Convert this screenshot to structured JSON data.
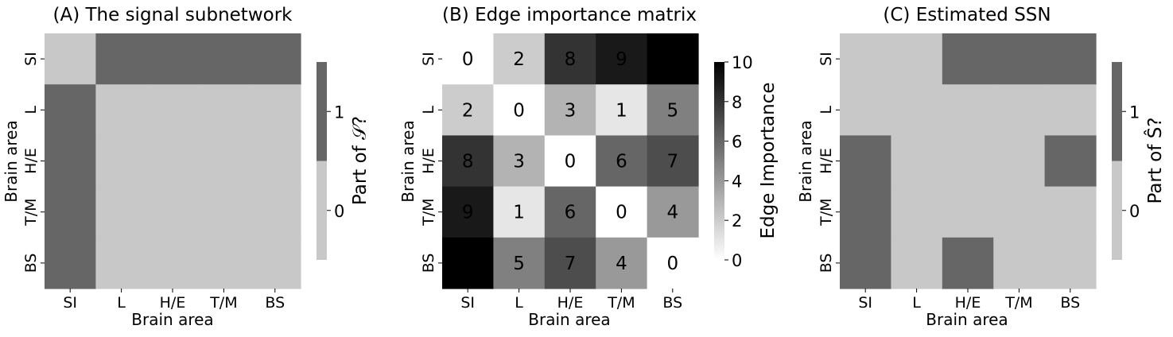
{
  "colors": {
    "dark": "#666666",
    "light": "#c8c8c8"
  },
  "chart_data": [
    {
      "type": "heatmap",
      "title": "(A) The signal subnetwork",
      "xlabel": "Brain area",
      "ylabel": "Brain area",
      "categories": [
        "SI",
        "L",
        "H/E",
        "T/M",
        "BS"
      ],
      "values": [
        [
          0,
          1,
          1,
          1,
          1
        ],
        [
          1,
          0,
          0,
          0,
          0
        ],
        [
          1,
          0,
          0,
          0,
          0
        ],
        [
          1,
          0,
          0,
          0,
          0
        ],
        [
          1,
          0,
          0,
          0,
          0
        ]
      ],
      "colorbar": {
        "label": "Part of 𝒮?",
        "ticks": [
          "0",
          "1"
        ],
        "range": [
          -0.5,
          1.5
        ],
        "discrete": true
      }
    },
    {
      "type": "heatmap",
      "title": "(B) Edge importance matrix",
      "xlabel": "Brain area",
      "ylabel": "Brain area",
      "categories": [
        "SI",
        "L",
        "H/E",
        "T/M",
        "BS"
      ],
      "values": [
        [
          0,
          2,
          8,
          9,
          10
        ],
        [
          2,
          0,
          3,
          1,
          5
        ],
        [
          8,
          3,
          0,
          6,
          7
        ],
        [
          9,
          1,
          6,
          0,
          4
        ],
        [
          10,
          5,
          7,
          4,
          0
        ]
      ],
      "annotated": true,
      "colorbar": {
        "label": "Edge Importance",
        "ticks": [
          "0",
          "2",
          "4",
          "6",
          "8",
          "10"
        ],
        "range": [
          0,
          10
        ],
        "discrete": false
      }
    },
    {
      "type": "heatmap",
      "title": "(C) Estimated SSN",
      "xlabel": "Brain area",
      "ylabel": "Brain area",
      "categories": [
        "SI",
        "L",
        "H/E",
        "T/M",
        "BS"
      ],
      "values": [
        [
          0,
          0,
          1,
          1,
          1
        ],
        [
          0,
          0,
          0,
          0,
          0
        ],
        [
          1,
          0,
          0,
          0,
          1
        ],
        [
          1,
          0,
          0,
          0,
          0
        ],
        [
          1,
          0,
          1,
          0,
          0
        ]
      ],
      "colorbar": {
        "label": "Part of Ŝ?",
        "ticks": [
          "0",
          "1"
        ],
        "range": [
          -0.5,
          1.5
        ],
        "discrete": true
      }
    }
  ]
}
